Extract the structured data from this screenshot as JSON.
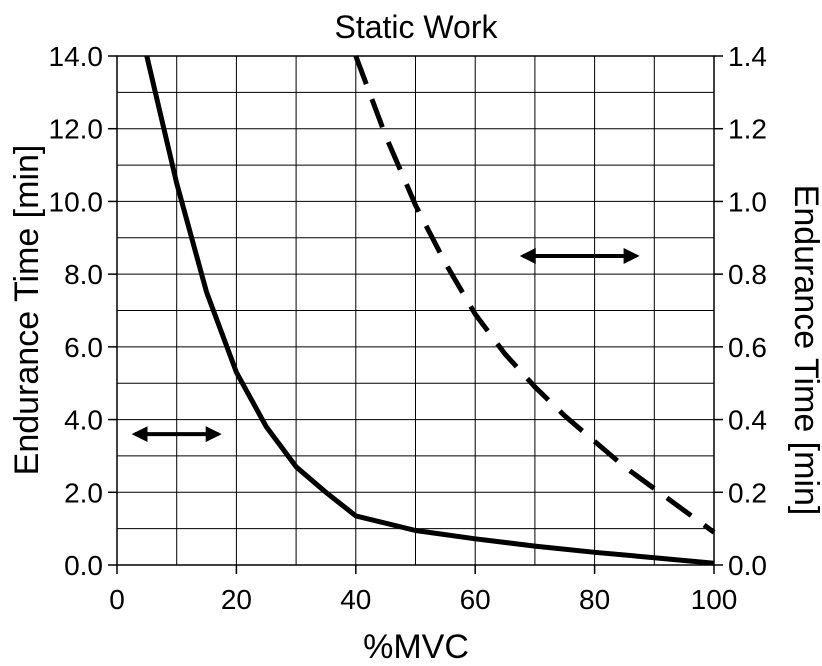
{
  "chart_data": {
    "type": "line",
    "title": "Static Work",
    "xlabel": "%MVC",
    "ylabel_left": "Endurance Time [min]",
    "ylabel_right": "Endurance Time [min]",
    "xlim": [
      0,
      100
    ],
    "ylim_left": [
      0,
      14
    ],
    "ylim_right": [
      0,
      1.4
    ],
    "x_ticks": [
      "0",
      "20",
      "40",
      "60",
      "80",
      "100"
    ],
    "y_left_ticks": [
      "0.0",
      "2.0",
      "4.0",
      "6.0",
      "8.0",
      "10.0",
      "12.0",
      "14.0"
    ],
    "y_right_ticks": [
      "0.0",
      "0.2",
      "0.4",
      "0.6",
      "0.8",
      "1.0",
      "1.2",
      "1.4"
    ],
    "grid": true,
    "series": [
      {
        "axis": "left",
        "style": "solid",
        "color": "#000000",
        "x": [
          5,
          10,
          15,
          20,
          25,
          30,
          35,
          40,
          50,
          60,
          70,
          80,
          90,
          100
        ],
        "values": [
          14.0,
          10.5,
          7.5,
          5.3,
          3.8,
          2.7,
          2.0,
          1.35,
          0.95,
          0.72,
          0.52,
          0.35,
          0.2,
          0.05
        ]
      },
      {
        "axis": "right",
        "style": "dashed",
        "color": "#000000",
        "x": [
          40,
          45,
          50,
          55,
          60,
          65,
          70,
          75,
          80,
          85,
          90,
          95,
          100
        ],
        "values": [
          1.4,
          1.18,
          0.99,
          0.83,
          0.69,
          0.58,
          0.49,
          0.41,
          0.34,
          0.27,
          0.21,
          0.15,
          0.09
        ]
      }
    ],
    "indicators": [
      {
        "axis": "left",
        "x_from": 3,
        "x_to": 17,
        "y": 3.6
      },
      {
        "axis": "right",
        "x_from": 68,
        "x_to": 87,
        "y": 0.85
      }
    ]
  }
}
